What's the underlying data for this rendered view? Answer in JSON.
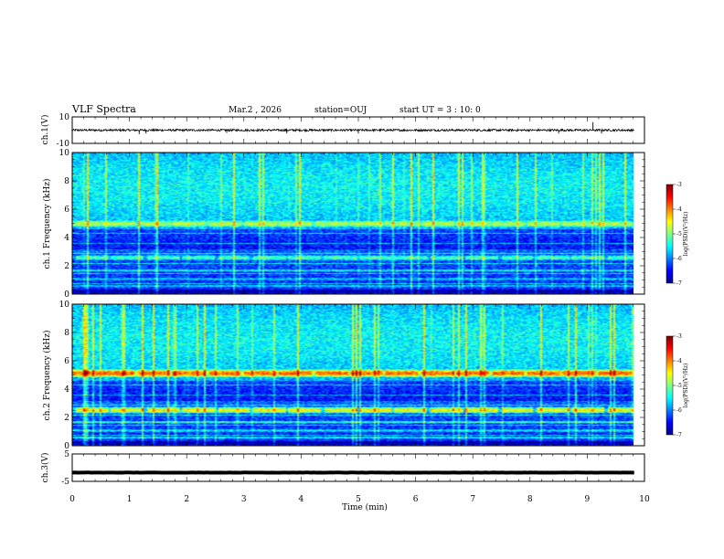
{
  "header": {
    "title": "VLF Spectra",
    "date": "Mar.2 , 2026",
    "station": "station=OUJ",
    "start_ut": "start UT = 3 : 10: 0"
  },
  "chart_data": [
    {
      "type": "line",
      "panel": "waveform-ch1",
      "ylabel": "ch.1(V)",
      "ylim": [
        -10,
        10
      ],
      "yticks": [
        10,
        -10
      ],
      "ytick_labels": [
        "10",
        "-10"
      ],
      "xlim": [
        0,
        10
      ],
      "baseline": 0,
      "noise_amplitude": 0.8,
      "spikes": [
        {
          "x": 1.17,
          "y": -3.0
        },
        {
          "x": 1.29,
          "y": -2.5
        },
        {
          "x": 2.7,
          "y": -2.0
        },
        {
          "x": 3.75,
          "y": -2.5
        },
        {
          "x": 5.0,
          "y": -2.5
        },
        {
          "x": 8.5,
          "y": -2.5
        },
        {
          "x": 9.1,
          "y": 6.0
        },
        {
          "x": 9.25,
          "y": -2.5
        }
      ]
    },
    {
      "type": "heatmap",
      "panel": "spectrogram-ch1",
      "ylabel": "ch.1 Frequency (kHz)",
      "ylim": [
        0,
        10
      ],
      "yticks": [
        0,
        2,
        4,
        6,
        8,
        10
      ],
      "ytick_labels": [
        "0",
        "2",
        "4",
        "6",
        "8",
        "10"
      ],
      "xlim": [
        0,
        9.82
      ],
      "colorbar": {
        "label": "log(PSD)(V²/Hz)",
        "range": [
          -7,
          -3
        ],
        "ticks": [
          -3,
          -4,
          -5,
          -6,
          -7
        ],
        "tick_labels": [
          "-3",
          "-4",
          "-5",
          "-6",
          "-7"
        ]
      },
      "bands": [
        {
          "f": 5.0,
          "w": 0.25,
          "level": -4.8
        },
        {
          "f": 2.6,
          "w": 0.2,
          "level": -5.2
        },
        {
          "f": 1.7,
          "w": 0.1,
          "level": -5.5
        },
        {
          "f": 1.1,
          "w": 0.1,
          "level": -5.7
        },
        {
          "f": 0.6,
          "w": 0.1,
          "level": -5.7
        }
      ]
    },
    {
      "type": "heatmap",
      "panel": "spectrogram-ch2",
      "ylabel": "ch.2 Frequency (kHz)",
      "ylim": [
        0,
        10
      ],
      "yticks": [
        0,
        2,
        4,
        6,
        8,
        10
      ],
      "ytick_labels": [
        "0",
        "2",
        "4",
        "6",
        "8",
        "10"
      ],
      "xlim": [
        0,
        9.82
      ],
      "colorbar": {
        "label": "log(PSD)(V²/Hz)",
        "range": [
          -7,
          -3
        ],
        "ticks": [
          -3,
          -4,
          -5,
          -6,
          -7
        ],
        "tick_labels": [
          "-3",
          "-4",
          "-5",
          "-6",
          "-7"
        ]
      },
      "bands": [
        {
          "f": 5.15,
          "w": 0.3,
          "level": -3.9
        },
        {
          "f": 2.55,
          "w": 0.25,
          "level": -4.5
        },
        {
          "f": 1.7,
          "w": 0.1,
          "level": -5.3
        },
        {
          "f": 1.1,
          "w": 0.1,
          "level": -5.5
        },
        {
          "f": 0.6,
          "w": 0.1,
          "level": -5.5
        }
      ]
    },
    {
      "type": "line",
      "panel": "waveform-ch3",
      "ylabel": "ch.3(V)",
      "ylim": [
        -5,
        5
      ],
      "yticks": [
        5,
        -5
      ],
      "ytick_labels": [
        "5",
        "-5"
      ],
      "xlim": [
        0,
        9.82
      ],
      "baseline": -1.8,
      "noise_amplitude": 0.05
    }
  ],
  "x_axis": {
    "label": "Time (min)",
    "range": [
      0,
      10
    ],
    "ticks": [
      0,
      1,
      2,
      3,
      4,
      5,
      6,
      7,
      8,
      9,
      10
    ],
    "tick_labels": [
      "0",
      "1",
      "2",
      "3",
      "4",
      "5",
      "6",
      "7",
      "8",
      "9",
      "10"
    ]
  },
  "colors": {
    "jet": [
      "#00008f",
      "#0000ff",
      "#00ffff",
      "#ffff00",
      "#ff0000",
      "#800000"
    ]
  }
}
